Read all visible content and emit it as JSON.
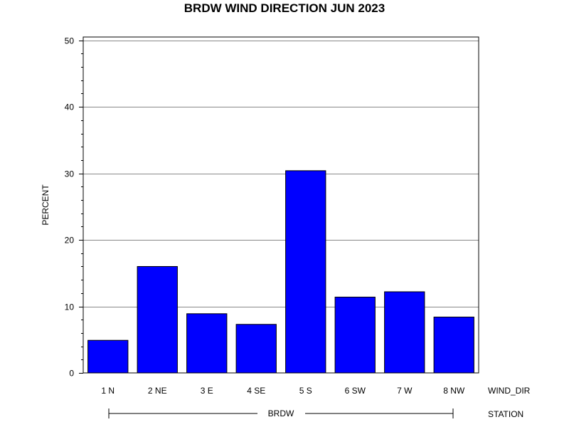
{
  "chart_data": {
    "type": "bar",
    "title": "BRDW WIND DIRECTION JUN 2023",
    "ylabel": "PERCENT",
    "x_axis_label": "WIND_DIR",
    "group_axis_label": "STATION",
    "group_name": "BRDW",
    "categories": [
      "1 N",
      "2 NE",
      "3 E",
      "4 SE",
      "5 S",
      "6 SW",
      "7 W",
      "8 NW"
    ],
    "values": [
      4.9,
      16.0,
      8.9,
      7.3,
      30.4,
      11.4,
      12.2,
      8.4
    ],
    "ylim": [
      0,
      50.5
    ],
    "y_major_ticks": [
      0,
      10,
      20,
      30,
      40,
      50
    ],
    "y_minor_step": 2,
    "grid": true,
    "bar_color": "#0000ff",
    "bar_edge_color": "#000000",
    "grid_color": "#888888"
  }
}
